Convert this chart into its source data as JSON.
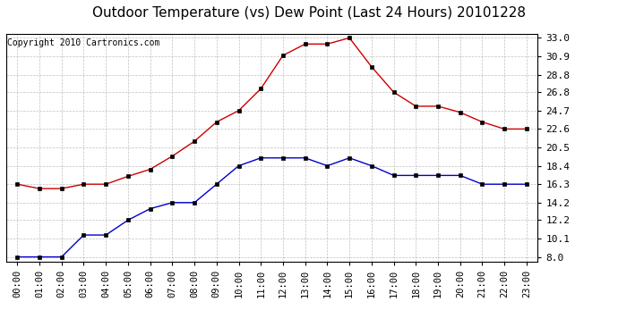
{
  "title": "Outdoor Temperature (vs) Dew Point (Last 24 Hours) 20101228",
  "copyright": "Copyright 2010 Cartronics.com",
  "x_labels": [
    "00:00",
    "01:00",
    "02:00",
    "03:00",
    "04:00",
    "05:00",
    "06:00",
    "07:00",
    "08:00",
    "09:00",
    "10:00",
    "11:00",
    "12:00",
    "13:00",
    "14:00",
    "15:00",
    "16:00",
    "17:00",
    "18:00",
    "19:00",
    "20:00",
    "21:00",
    "22:00",
    "23:00"
  ],
  "temp_red": [
    16.3,
    15.8,
    15.8,
    16.3,
    16.3,
    17.2,
    18.0,
    19.5,
    21.2,
    23.4,
    24.7,
    27.2,
    31.0,
    32.3,
    32.3,
    33.0,
    29.7,
    26.8,
    25.2,
    25.2,
    24.5,
    23.4,
    22.6,
    22.6
  ],
  "dew_blue": [
    8.0,
    8.0,
    8.0,
    10.5,
    10.5,
    12.2,
    13.5,
    14.2,
    14.2,
    16.3,
    18.4,
    19.3,
    19.3,
    19.3,
    18.4,
    19.3,
    18.4,
    17.3,
    17.3,
    17.3,
    17.3,
    16.3,
    16.3,
    16.3
  ],
  "y_ticks": [
    8.0,
    10.1,
    12.2,
    14.2,
    16.3,
    18.4,
    20.5,
    22.6,
    24.7,
    26.8,
    28.8,
    30.9,
    33.0
  ],
  "ylim": [
    7.5,
    33.5
  ],
  "bg_color": "#ffffff",
  "plot_bg_color": "#ffffff",
  "grid_color": "#b0b0b0",
  "temp_color": "#cc0000",
  "dew_color": "#0000cc",
  "title_fontsize": 11,
  "copyright_fontsize": 7,
  "tick_fontsize": 7.5,
  "ytick_fontsize": 8
}
